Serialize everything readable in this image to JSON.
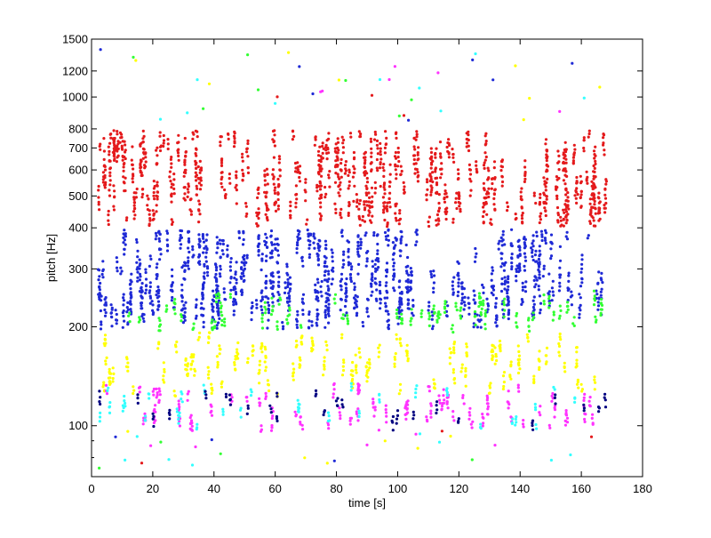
{
  "chart_data": {
    "type": "scatter",
    "title": "",
    "xlabel": "time [s]",
    "ylabel": "pitch [Hz]",
    "xlim": [
      0,
      180
    ],
    "ylim": [
      70,
      1500
    ],
    "yscale": "log",
    "grid": false,
    "legend": "none",
    "x_ticks": [
      0,
      20,
      40,
      60,
      80,
      100,
      120,
      140,
      160,
      180
    ],
    "y_ticks": [
      100,
      200,
      300,
      400,
      500,
      600,
      700,
      800,
      1000,
      1200,
      1500
    ],
    "x_tick_labels": [
      "0",
      "20",
      "40",
      "60",
      "80",
      "100",
      "120",
      "140",
      "160",
      "180"
    ],
    "y_tick_labels": [
      "100",
      "200",
      "300",
      "400",
      "500",
      "600",
      "700",
      "800",
      "1000",
      "1200",
      "1500"
    ],
    "time_range": [
      2,
      168
    ],
    "colors": {
      "red": "#e41a1c",
      "blue": "#1f2ad6",
      "green": "#33ff33",
      "yellow": "#ffff00",
      "magenta": "#ff33ff",
      "cyan": "#33ffff",
      "navy": "#000080"
    },
    "series": [
      {
        "color": "red",
        "pitch_range": [
          420,
          760
        ],
        "density": "high"
      },
      {
        "color": "blue",
        "pitch_range": [
          205,
          380
        ],
        "density": "high"
      },
      {
        "color": "green",
        "pitch_range": [
          200,
          250
        ],
        "density": "medium"
      },
      {
        "color": "yellow",
        "pitch_range": [
          125,
          185
        ],
        "density": "medium"
      },
      {
        "color": "magenta",
        "pitch_range": [
          100,
          130
        ],
        "density": "medium"
      },
      {
        "color": "cyan",
        "pitch_range": [
          80,
          1500
        ],
        "density": "sparse"
      }
    ]
  }
}
